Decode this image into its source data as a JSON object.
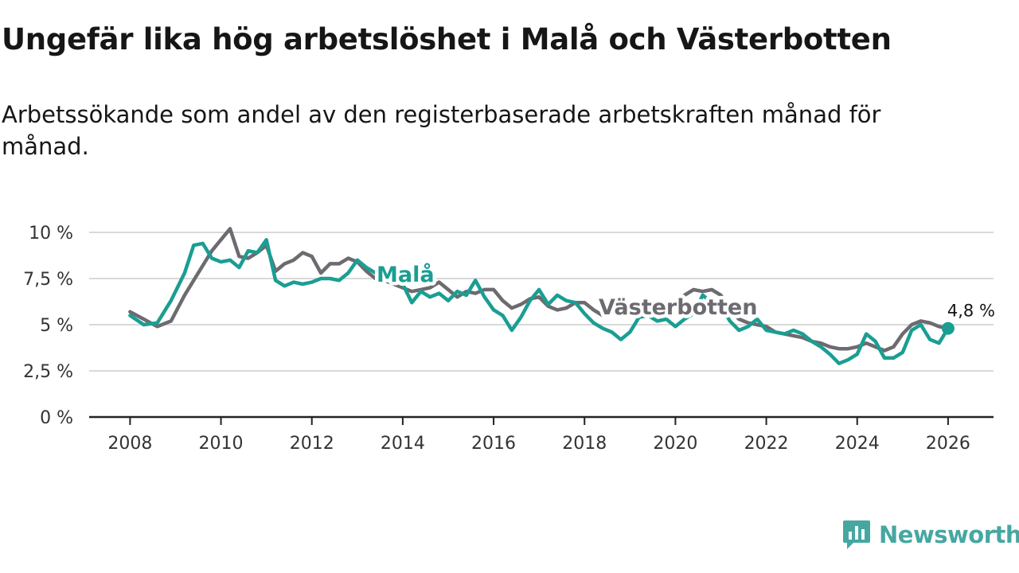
{
  "title": "Ungefär lika hög arbetslöshet i Malå och Västerbotten",
  "subtitle": "Arbetssökande som andel av den registerbaserade arbetskraften månad för månad.",
  "brand": "Newsworthy",
  "colors": {
    "mala": "#1a9e93",
    "vasterbotten": "#6d6a70",
    "grid": "#d9d9d9",
    "axis": "#222222",
    "brand": "#46a7a1"
  },
  "chart_data": {
    "type": "line",
    "title": "Ungefär lika hög arbetslöshet i Malå och Västerbotten",
    "xlabel": "",
    "ylabel": "",
    "xlim": [
      2007.1,
      2027.0
    ],
    "ylim": [
      0,
      10
    ],
    "x_ticks": [
      2008,
      2010,
      2012,
      2014,
      2016,
      2018,
      2020,
      2022,
      2024,
      2026
    ],
    "x_tick_labels": [
      "2008",
      "2010",
      "2012",
      "2014",
      "2016",
      "2018",
      "2020",
      "2022",
      "2024",
      "2026"
    ],
    "y_ticks": [
      0,
      2.5,
      5,
      7.5,
      10
    ],
    "y_tick_labels": [
      "0 %",
      "2,5 %",
      "5 %",
      "7,5 %",
      "10 %"
    ],
    "grid": true,
    "series": [
      {
        "name": "Västerbotten",
        "label": "Västerbotten",
        "x": [
          2008.0,
          2008.3,
          2008.6,
          2008.9,
          2009.2,
          2009.5,
          2009.8,
          2010.0,
          2010.2,
          2010.4,
          2010.6,
          2010.8,
          2011.0,
          2011.2,
          2011.4,
          2011.6,
          2011.8,
          2012.0,
          2012.2,
          2012.4,
          2012.6,
          2012.8,
          2013.0,
          2013.2,
          2013.4,
          2013.6,
          2013.8,
          2014.0,
          2014.2,
          2014.4,
          2014.6,
          2014.8,
          2015.0,
          2015.2,
          2015.4,
          2015.6,
          2015.8,
          2016.0,
          2016.2,
          2016.4,
          2016.6,
          2016.8,
          2017.0,
          2017.2,
          2017.4,
          2017.6,
          2017.8,
          2018.0,
          2018.2,
          2018.4,
          2018.6,
          2018.8,
          2019.0,
          2019.2,
          2019.4,
          2019.6,
          2019.8,
          2020.0,
          2020.2,
          2020.4,
          2020.6,
          2020.8,
          2021.0,
          2021.2,
          2021.4,
          2021.6,
          2021.8,
          2022.0,
          2022.2,
          2022.4,
          2022.6,
          2022.8,
          2023.0,
          2023.2,
          2023.4,
          2023.6,
          2023.8,
          2024.0,
          2024.2,
          2024.4,
          2024.6,
          2024.8,
          2025.0,
          2025.2,
          2025.4,
          2025.6,
          2025.8,
          2026.0
        ],
        "values": [
          5.7,
          5.3,
          4.9,
          5.2,
          6.6,
          7.8,
          9.0,
          9.6,
          10.2,
          8.7,
          8.6,
          8.9,
          9.3,
          7.9,
          8.3,
          8.5,
          8.9,
          8.7,
          7.8,
          8.3,
          8.3,
          8.6,
          8.4,
          7.9,
          7.5,
          7.4,
          7.2,
          7.0,
          6.8,
          6.9,
          7.0,
          7.3,
          6.9,
          6.5,
          6.8,
          6.7,
          6.9,
          6.9,
          6.3,
          5.9,
          6.1,
          6.4,
          6.5,
          6.0,
          5.8,
          5.9,
          6.2,
          6.2,
          5.8,
          5.5,
          5.6,
          5.6,
          5.7,
          5.5,
          5.5,
          5.7,
          5.9,
          6.1,
          6.6,
          6.9,
          6.8,
          6.9,
          6.6,
          5.8,
          5.3,
          5.1,
          5.0,
          4.9,
          4.6,
          4.5,
          4.4,
          4.3,
          4.1,
          4.0,
          3.8,
          3.7,
          3.7,
          3.8,
          4.0,
          3.8,
          3.6,
          3.8,
          4.5,
          5.0,
          5.2,
          5.1,
          4.9,
          4.8
        ]
      },
      {
        "name": "Malå",
        "label": "Malå",
        "x": [
          2008.0,
          2008.3,
          2008.6,
          2008.9,
          2009.2,
          2009.4,
          2009.6,
          2009.8,
          2010.0,
          2010.2,
          2010.4,
          2010.6,
          2010.8,
          2011.0,
          2011.2,
          2011.4,
          2011.6,
          2011.8,
          2012.0,
          2012.2,
          2012.4,
          2012.6,
          2012.8,
          2013.0,
          2013.2,
          2013.4,
          2013.6,
          2013.8,
          2014.0,
          2014.2,
          2014.4,
          2014.6,
          2014.8,
          2015.0,
          2015.2,
          2015.4,
          2015.6,
          2015.8,
          2016.0,
          2016.2,
          2016.4,
          2016.6,
          2016.8,
          2017.0,
          2017.2,
          2017.4,
          2017.6,
          2017.8,
          2018.0,
          2018.2,
          2018.4,
          2018.6,
          2018.8,
          2019.0,
          2019.2,
          2019.4,
          2019.6,
          2019.8,
          2020.0,
          2020.2,
          2020.4,
          2020.6,
          2020.8,
          2021.0,
          2021.2,
          2021.4,
          2021.6,
          2021.8,
          2022.0,
          2022.2,
          2022.4,
          2022.6,
          2022.8,
          2023.0,
          2023.2,
          2023.4,
          2023.6,
          2023.8,
          2024.0,
          2024.2,
          2024.4,
          2024.6,
          2024.8,
          2025.0,
          2025.2,
          2025.4,
          2025.6,
          2025.8,
          2026.0
        ],
        "values": [
          5.5,
          5.0,
          5.1,
          6.3,
          7.8,
          9.3,
          9.4,
          8.6,
          8.4,
          8.5,
          8.1,
          9.0,
          8.9,
          9.6,
          7.4,
          7.1,
          7.3,
          7.2,
          7.3,
          7.5,
          7.5,
          7.4,
          7.8,
          8.5,
          8.1,
          7.8,
          7.7,
          7.5,
          7.2,
          6.2,
          6.8,
          6.5,
          6.7,
          6.3,
          6.8,
          6.6,
          7.4,
          6.5,
          5.8,
          5.5,
          4.7,
          5.4,
          6.3,
          6.9,
          6.1,
          6.6,
          6.3,
          6.2,
          5.6,
          5.1,
          4.8,
          4.6,
          4.2,
          4.6,
          5.4,
          5.5,
          5.2,
          5.3,
          4.9,
          5.3,
          5.6,
          6.6,
          6.2,
          6.0,
          5.2,
          4.7,
          4.9,
          5.3,
          4.7,
          4.6,
          4.5,
          4.7,
          4.5,
          4.1,
          3.8,
          3.4,
          2.9,
          3.1,
          3.4,
          4.5,
          4.1,
          3.2,
          3.2,
          3.5,
          4.7,
          5.0,
          4.2,
          4.0,
          4.8
        ]
      }
    ],
    "annotations": [
      {
        "text": "4,8 %",
        "x": 2026.0,
        "y": 4.8,
        "series": "Malå"
      }
    ]
  }
}
